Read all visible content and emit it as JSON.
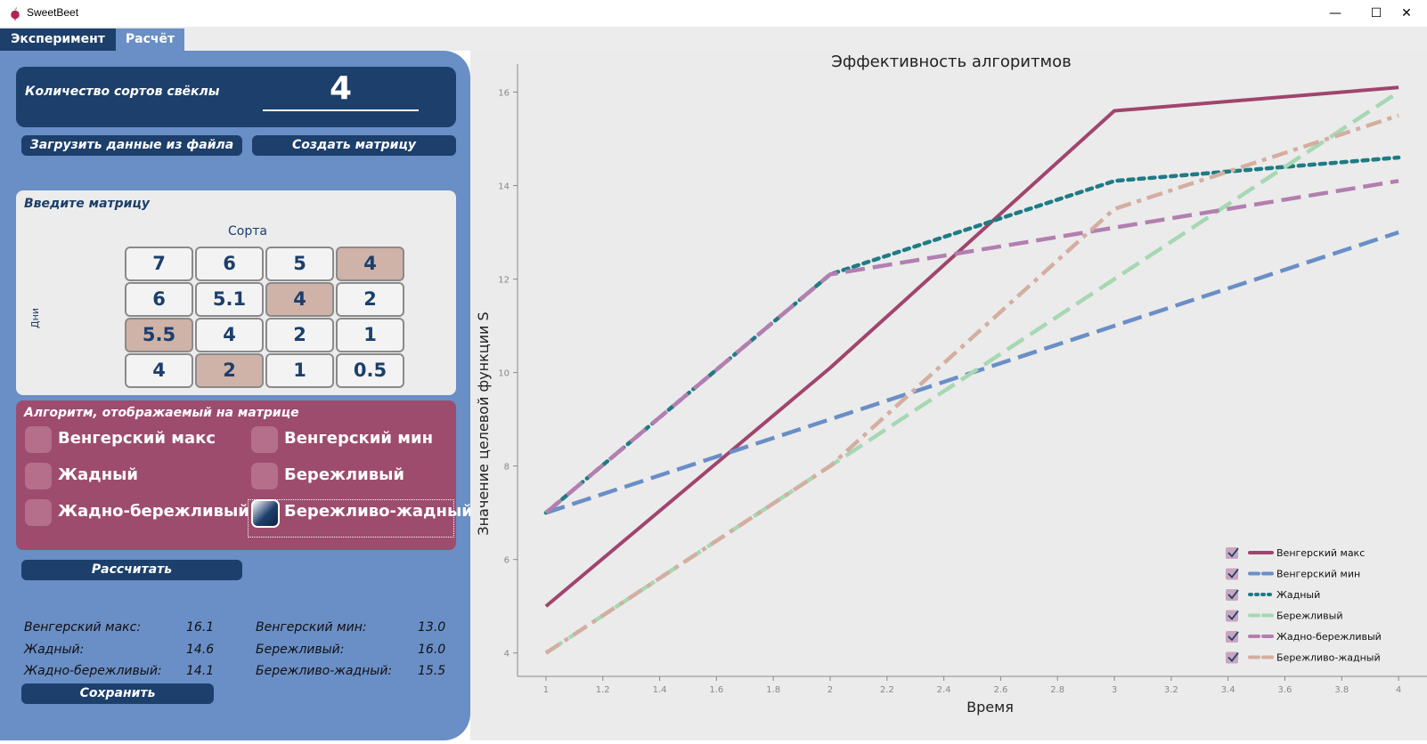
{
  "window": {
    "title": "SweetBeet",
    "minimize_glyph": "—",
    "maximize_glyph": "☐",
    "close_glyph": "✕"
  },
  "tabs": [
    {
      "label": "Эксперимент",
      "active": true
    },
    {
      "label": "Расчёт",
      "active": false
    }
  ],
  "count": {
    "label": "Количество сортов свёклы",
    "value": "4"
  },
  "buttons": {
    "load": "Загрузить данные из файла",
    "create": "Создать матрицу",
    "calculate": "Рассчитать",
    "save": "Сохранить"
  },
  "matrix": {
    "title": "Введите матрицу",
    "col_label": "Сорта",
    "row_label": "Дни",
    "rows": [
      [
        "7",
        "6",
        "5",
        "4"
      ],
      [
        "6",
        "5.1",
        "4",
        "2"
      ],
      [
        "5.5",
        "4",
        "2",
        "1"
      ],
      [
        "4",
        "2",
        "1",
        "0.5"
      ]
    ],
    "highlight_color": "#cfb2a8"
  },
  "algorithms": {
    "title": "Алгоритм, отображаемый на матрице",
    "options": [
      {
        "label": "Венгерский макс",
        "checked": false
      },
      {
        "label": "Венгерский мин",
        "checked": false
      },
      {
        "label": "Жадный",
        "checked": false
      },
      {
        "label": "Бережливый",
        "checked": false
      },
      {
        "label": "Жадно-бережливый",
        "checked": false
      },
      {
        "label": "Бережливо-жадный",
        "checked": true
      }
    ]
  },
  "results": [
    {
      "label": "Венгерский макс:",
      "value": "16.1"
    },
    {
      "label": "Венгерский мин:",
      "value": "13.0"
    },
    {
      "label": "Жадный:",
      "value": "14.6"
    },
    {
      "label": "Бережливый:",
      "value": "16.0"
    },
    {
      "label": "Жадно-бережливый:",
      "value": "14.1"
    },
    {
      "label": "Бережливо-жадный:",
      "value": "15.5"
    }
  ],
  "colors": {
    "navy": "#1c3f6b",
    "panel_blue": "#6a8ec6",
    "algo_card": "#9d4c6d",
    "chart_bg": "#ebebeb"
  },
  "chart_data": {
    "type": "line",
    "title": "Эффективность алгоритмов",
    "xlabel": "Время",
    "ylabel": "Значение целевой функции S",
    "x": [
      1,
      2,
      3,
      4
    ],
    "xlim": [
      0.9,
      4.1
    ],
    "ylim": [
      3.5,
      16.6
    ],
    "xticks": [
      "1",
      "1.2",
      "1.4",
      "1.6",
      "1.8",
      "2",
      "2.2",
      "2.4",
      "2.6",
      "2.8",
      "3",
      "3.2",
      "3.4",
      "3.6",
      "3.8",
      "4"
    ],
    "yticks": [
      "4",
      "6",
      "8",
      "10",
      "12",
      "14",
      "16"
    ],
    "grid": false,
    "legend_position": "bottom-right",
    "series": [
      {
        "name": "Венгерский макс",
        "values": [
          5,
          10.1,
          15.6,
          16.1
        ],
        "color": "#a0456d",
        "style": "solid"
      },
      {
        "name": "Венгерский мин",
        "values": [
          7,
          9,
          11,
          13
        ],
        "color": "#6a8ec6",
        "style": "dashed"
      },
      {
        "name": "Жадный",
        "values": [
          7,
          12.1,
          14.1,
          14.6
        ],
        "color": "#1f7b84",
        "style": "dotted"
      },
      {
        "name": "Бережливый",
        "values": [
          4,
          8,
          12,
          16
        ],
        "color": "#a6d8b2",
        "style": "dashed"
      },
      {
        "name": "Жадно-бережливый",
        "values": [
          7,
          12.1,
          13.1,
          14.1
        ],
        "color": "#b27fb0",
        "style": "dashed"
      },
      {
        "name": "Бережливо-жадный",
        "values": [
          4,
          8,
          13.5,
          15.5
        ],
        "color": "#d4aea1",
        "style": "dashdot"
      }
    ]
  }
}
